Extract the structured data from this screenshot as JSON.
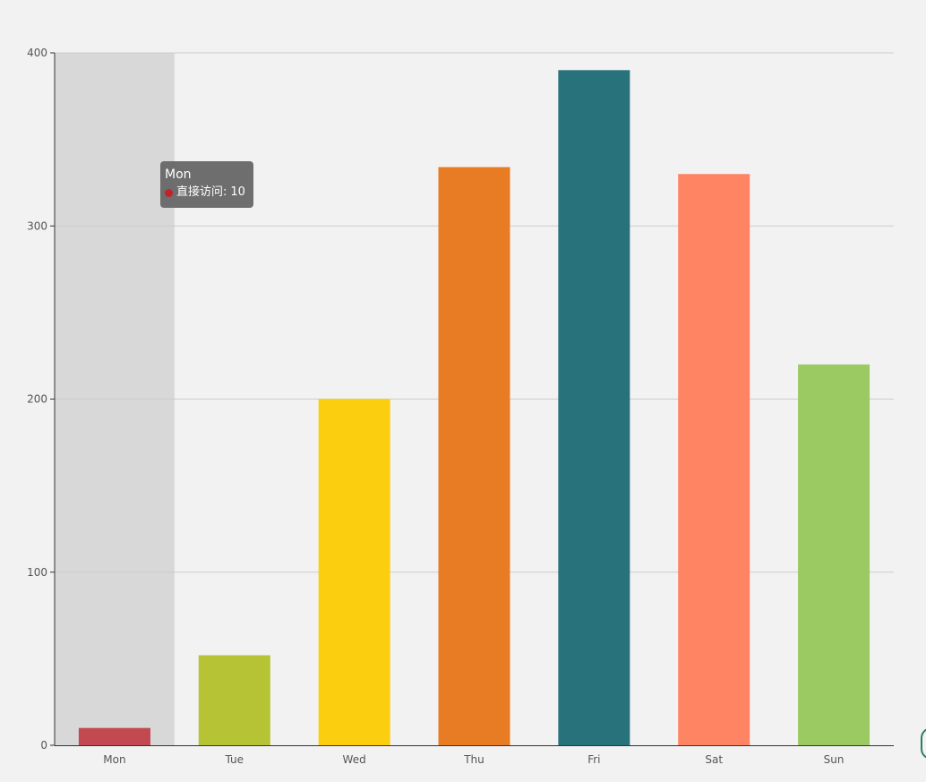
{
  "chart_data": {
    "type": "bar",
    "title": "",
    "xlabel": "",
    "ylabel": "",
    "categories": [
      "Mon",
      "Tue",
      "Wed",
      "Thu",
      "Fri",
      "Sat",
      "Sun"
    ],
    "series": [
      {
        "name": "直接访问",
        "values": [
          10,
          52,
          200,
          334,
          390,
          330,
          220
        ]
      }
    ],
    "bar_colors": [
      "#c1494f",
      "#b5c334",
      "#fcce10",
      "#e87c25",
      "#27727b",
      "#fe8463",
      "#9bca63"
    ],
    "ylim": [
      0,
      400
    ],
    "yticks": [
      0,
      100,
      200,
      300,
      400
    ],
    "grid": true,
    "highlighted_category": "Mon"
  },
  "tooltip": {
    "title": "Mon",
    "series_label": "直接访问:",
    "value": "10",
    "marker_color": "#c1232b"
  },
  "colors": {
    "background": "#f3f2f3",
    "axis": "#333333",
    "gridline": "#cccccc",
    "highlight_band": "#d8d8d8"
  }
}
